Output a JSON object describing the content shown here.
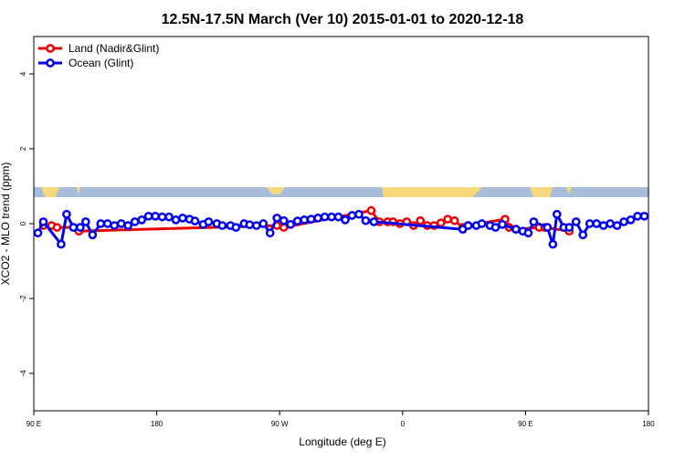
{
  "chart_data": {
    "type": "line",
    "title": "12.5N-17.5N March (Ver 10)   2015-01-01 to 2020-12-18",
    "xlabel": "Longitude (deg E)",
    "ylabel": "XCO2 - MLO trend (ppm)",
    "xlim": [
      90,
      540
    ],
    "xticks": [
      {
        "value": 90,
        "label": "90 E"
      },
      {
        "value": 180,
        "label": "180"
      },
      {
        "value": 270,
        "label": "90 W"
      },
      {
        "value": 360,
        "label": "0"
      },
      {
        "value": 450,
        "label": "90 E"
      },
      {
        "value": 540,
        "label": "180"
      }
    ],
    "ylim": [
      -5,
      5
    ],
    "yticks": [
      -4,
      -2,
      0,
      2,
      4
    ],
    "legend": "top-left",
    "series": [
      {
        "name": "Land (Nadir&Glint)",
        "color": "#ee0000",
        "x": [
          97,
          103,
          107,
          119,
          123,
          268,
          273,
          337,
          343,
          349,
          353,
          358,
          363,
          368,
          373,
          378,
          383,
          388,
          393,
          398,
          404,
          408,
          435,
          438,
          443,
          460,
          464,
          482
        ],
        "values": [
          -0.05,
          -0.05,
          -0.1,
          -0.1,
          -0.2,
          -0.05,
          -0.1,
          0.35,
          0.05,
          0.05,
          0.05,
          0.0,
          0.05,
          -0.05,
          0.08,
          -0.05,
          -0.05,
          0.02,
          0.12,
          0.08,
          -0.1,
          -0.05,
          0.12,
          -0.1,
          -0.15,
          -0.1,
          -0.1,
          -0.2
        ]
      },
      {
        "name": "Ocean (Glint)",
        "color": "#0000ee",
        "x": [
          93,
          97,
          110,
          114,
          119,
          124,
          128,
          133,
          139,
          144,
          149,
          154,
          159,
          164,
          169,
          174,
          179,
          184,
          189,
          194,
          199,
          204,
          208,
          214,
          218,
          224,
          228,
          234,
          238,
          244,
          248,
          253,
          258,
          263,
          268,
          273,
          278,
          283,
          288,
          293,
          298,
          303,
          308,
          313,
          318,
          323,
          328,
          333,
          339,
          404,
          408,
          414,
          418,
          424,
          428,
          433,
          443,
          448,
          452,
          456,
          466,
          470,
          473,
          478,
          482,
          487,
          492,
          497,
          502,
          507,
          512,
          517,
          522,
          527,
          532,
          537
        ],
        "values": [
          -0.25,
          0.05,
          -0.55,
          0.25,
          -0.1,
          -0.1,
          0.05,
          -0.3,
          0.0,
          0.0,
          -0.05,
          0.0,
          -0.05,
          0.05,
          0.1,
          0.2,
          0.2,
          0.18,
          0.18,
          0.1,
          0.15,
          0.12,
          0.07,
          -0.02,
          0.05,
          0.0,
          -0.05,
          -0.05,
          -0.1,
          0.0,
          -0.03,
          -0.05,
          0.0,
          -0.25,
          0.15,
          0.08,
          -0.02,
          0.07,
          0.1,
          0.12,
          0.15,
          0.18,
          0.18,
          0.18,
          0.1,
          0.22,
          0.25,
          0.08,
          0.05,
          -0.15,
          -0.05,
          -0.05,
          0.0,
          -0.05,
          -0.1,
          -0.02,
          -0.15,
          -0.2,
          -0.25,
          0.05,
          -0.1,
          -0.55,
          0.25,
          -0.1,
          -0.1,
          0.05,
          -0.3,
          0.0,
          0.0,
          -0.05,
          0.0,
          -0.05,
          0.05,
          0.1,
          0.2,
          0.2
        ]
      }
    ]
  }
}
